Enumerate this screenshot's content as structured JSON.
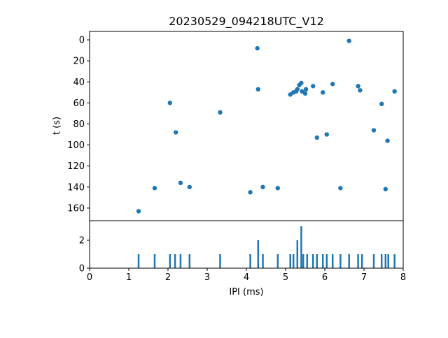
{
  "figure": {
    "background": "#ffffff",
    "accent_color": "#1f77b4"
  },
  "chart_data": [
    {
      "type": "scatter",
      "title": "20230529_094218UTC_V12",
      "ylabel": "t (s)",
      "xlim": [
        0,
        8
      ],
      "ylim_inverted": [
        -8,
        172
      ],
      "yticks": [
        0,
        20,
        40,
        60,
        80,
        100,
        120,
        140,
        160
      ],
      "marker_color": "#1f77b4",
      "grid": false,
      "points": [
        [
          1.25,
          163
        ],
        [
          1.66,
          141
        ],
        [
          2.05,
          60
        ],
        [
          2.2,
          88
        ],
        [
          2.32,
          136
        ],
        [
          2.55,
          140
        ],
        [
          3.33,
          69
        ],
        [
          4.1,
          145
        ],
        [
          4.28,
          8
        ],
        [
          4.3,
          47
        ],
        [
          4.42,
          140
        ],
        [
          4.8,
          141
        ],
        [
          5.12,
          52
        ],
        [
          5.2,
          50
        ],
        [
          5.27,
          49
        ],
        [
          5.3,
          47
        ],
        [
          5.35,
          43
        ],
        [
          5.4,
          41
        ],
        [
          5.42,
          49
        ],
        [
          5.5,
          51
        ],
        [
          5.52,
          47
        ],
        [
          5.7,
          44
        ],
        [
          5.8,
          93
        ],
        [
          5.95,
          50
        ],
        [
          6.05,
          90
        ],
        [
          6.2,
          42
        ],
        [
          6.4,
          141
        ],
        [
          6.62,
          1
        ],
        [
          6.85,
          44
        ],
        [
          6.9,
          48
        ],
        [
          7.25,
          86
        ],
        [
          7.45,
          61
        ],
        [
          7.55,
          142
        ],
        [
          7.6,
          96
        ],
        [
          7.78,
          49
        ]
      ]
    },
    {
      "type": "bar",
      "xlabel": "IPI (ms)",
      "xlim": [
        0,
        8
      ],
      "ylim": [
        0,
        3.4
      ],
      "xticks": [
        0,
        1,
        2,
        3,
        4,
        5,
        6,
        7,
        8
      ],
      "yticks": [
        0,
        2
      ],
      "bar_color": "#1f77b4",
      "grid": false,
      "bars": [
        [
          1.25,
          1
        ],
        [
          1.66,
          1
        ],
        [
          2.05,
          1
        ],
        [
          2.18,
          1
        ],
        [
          2.32,
          1
        ],
        [
          2.55,
          1
        ],
        [
          3.33,
          1
        ],
        [
          4.1,
          1
        ],
        [
          4.3,
          2
        ],
        [
          4.42,
          1
        ],
        [
          4.8,
          1
        ],
        [
          5.12,
          1
        ],
        [
          5.2,
          1
        ],
        [
          5.3,
          2
        ],
        [
          5.4,
          3
        ],
        [
          5.45,
          1
        ],
        [
          5.55,
          1
        ],
        [
          5.7,
          1
        ],
        [
          5.8,
          1
        ],
        [
          5.95,
          1
        ],
        [
          6.05,
          1
        ],
        [
          6.2,
          1
        ],
        [
          6.4,
          1
        ],
        [
          6.62,
          1
        ],
        [
          6.85,
          1
        ],
        [
          6.95,
          1
        ],
        [
          7.25,
          1
        ],
        [
          7.45,
          1
        ],
        [
          7.55,
          1
        ],
        [
          7.62,
          1
        ],
        [
          7.78,
          1
        ]
      ]
    }
  ]
}
